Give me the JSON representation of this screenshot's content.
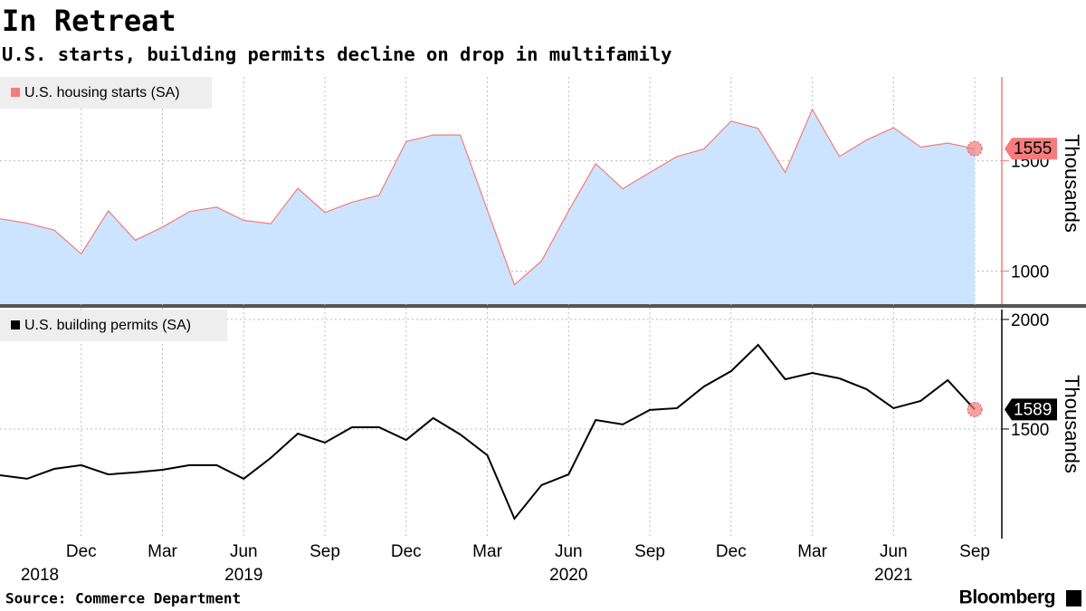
{
  "title": "In Retreat",
  "subtitle": "U.S. starts, building permits decline on drop in multifamily",
  "source": "Source: Commerce Department",
  "brand": "Bloomberg",
  "chart_data": [
    {
      "type": "area",
      "x": [
        "2018-09",
        "2018-10",
        "2018-11",
        "2018-12",
        "2019-01",
        "2019-02",
        "2019-03",
        "2019-04",
        "2019-05",
        "2019-06",
        "2019-07",
        "2019-08",
        "2019-09",
        "2019-10",
        "2019-11",
        "2019-12",
        "2020-01",
        "2020-02",
        "2020-03",
        "2020-04",
        "2020-05",
        "2020-06",
        "2020-07",
        "2020-08",
        "2020-09",
        "2020-10",
        "2020-11",
        "2020-12",
        "2021-01",
        "2021-02",
        "2021-03",
        "2021-04",
        "2021-05",
        "2021-06",
        "2021-07",
        "2021-08",
        "2021-09"
      ],
      "series": [
        {
          "name": "U.S. housing starts (SA)",
          "color": "#f47c7c",
          "fill": "#cce4ff",
          "values": [
            1237,
            1217,
            1186,
            1078,
            1273,
            1140,
            1199,
            1270,
            1290,
            1230,
            1215,
            1375,
            1266,
            1312,
            1344,
            1587,
            1617,
            1617,
            1276,
            938,
            1046,
            1273,
            1487,
            1373,
            1447,
            1519,
            1554,
            1680,
            1647,
            1447,
            1733,
            1519,
            1594,
            1650,
            1562,
            1580,
            1555
          ]
        }
      ],
      "xlim": [
        "2018-09",
        "2021-10"
      ],
      "ylim": [
        850,
        1880
      ],
      "yticks": [
        1000,
        1500
      ],
      "y_label": "Thousands",
      "grid": true
    },
    {
      "type": "line",
      "x": [
        "2018-09",
        "2018-10",
        "2018-11",
        "2018-12",
        "2019-01",
        "2019-02",
        "2019-03",
        "2019-04",
        "2019-05",
        "2019-06",
        "2019-07",
        "2019-08",
        "2019-09",
        "2019-10",
        "2019-11",
        "2019-12",
        "2020-01",
        "2020-02",
        "2020-03",
        "2020-04",
        "2020-05",
        "2020-06",
        "2020-07",
        "2020-08",
        "2020-09",
        "2020-10",
        "2020-11",
        "2020-12",
        "2021-01",
        "2021-02",
        "2021-03",
        "2021-04",
        "2021-05",
        "2021-06",
        "2021-07",
        "2021-08",
        "2021-09"
      ],
      "series": [
        {
          "name": "U.S. building permits (SA)",
          "color": "#000000",
          "values": [
            1289,
            1273,
            1318,
            1335,
            1293,
            1302,
            1314,
            1335,
            1335,
            1273,
            1368,
            1479,
            1438,
            1508,
            1508,
            1450,
            1550,
            1475,
            1380,
            1091,
            1244,
            1293,
            1541,
            1521,
            1587,
            1595,
            1694,
            1764,
            1884,
            1727,
            1756,
            1731,
            1682,
            1595,
            1628,
            1723,
            1589
          ]
        }
      ],
      "xlim": [
        "2018-09",
        "2021-10"
      ],
      "ylim": [
        1000,
        2045
      ],
      "yticks": [
        1500,
        2000
      ],
      "y_label": "Thousands",
      "grid": true,
      "xticks": [
        {
          "value": "2018-12",
          "label": "Dec"
        },
        {
          "value": "2019-03",
          "label": "Mar"
        },
        {
          "value": "2019-06",
          "label": "Jun"
        },
        {
          "value": "2019-09",
          "label": "Sep"
        },
        {
          "value": "2019-12",
          "label": "Dec"
        },
        {
          "value": "2020-03",
          "label": "Mar"
        },
        {
          "value": "2020-06",
          "label": "Jun"
        },
        {
          "value": "2020-09",
          "label": "Sep"
        },
        {
          "value": "2020-12",
          "label": "Dec"
        },
        {
          "value": "2021-03",
          "label": "Mar"
        },
        {
          "value": "2021-06",
          "label": "Jun"
        },
        {
          "value": "2021-09",
          "label": "Sep"
        }
      ],
      "year_ticks": [
        {
          "value": "2018-10",
          "label": "2018"
        },
        {
          "value": "2019-06",
          "label": "2019"
        },
        {
          "value": "2020-06",
          "label": "2020"
        },
        {
          "value": "2021-06",
          "label": "2021"
        }
      ]
    }
  ]
}
